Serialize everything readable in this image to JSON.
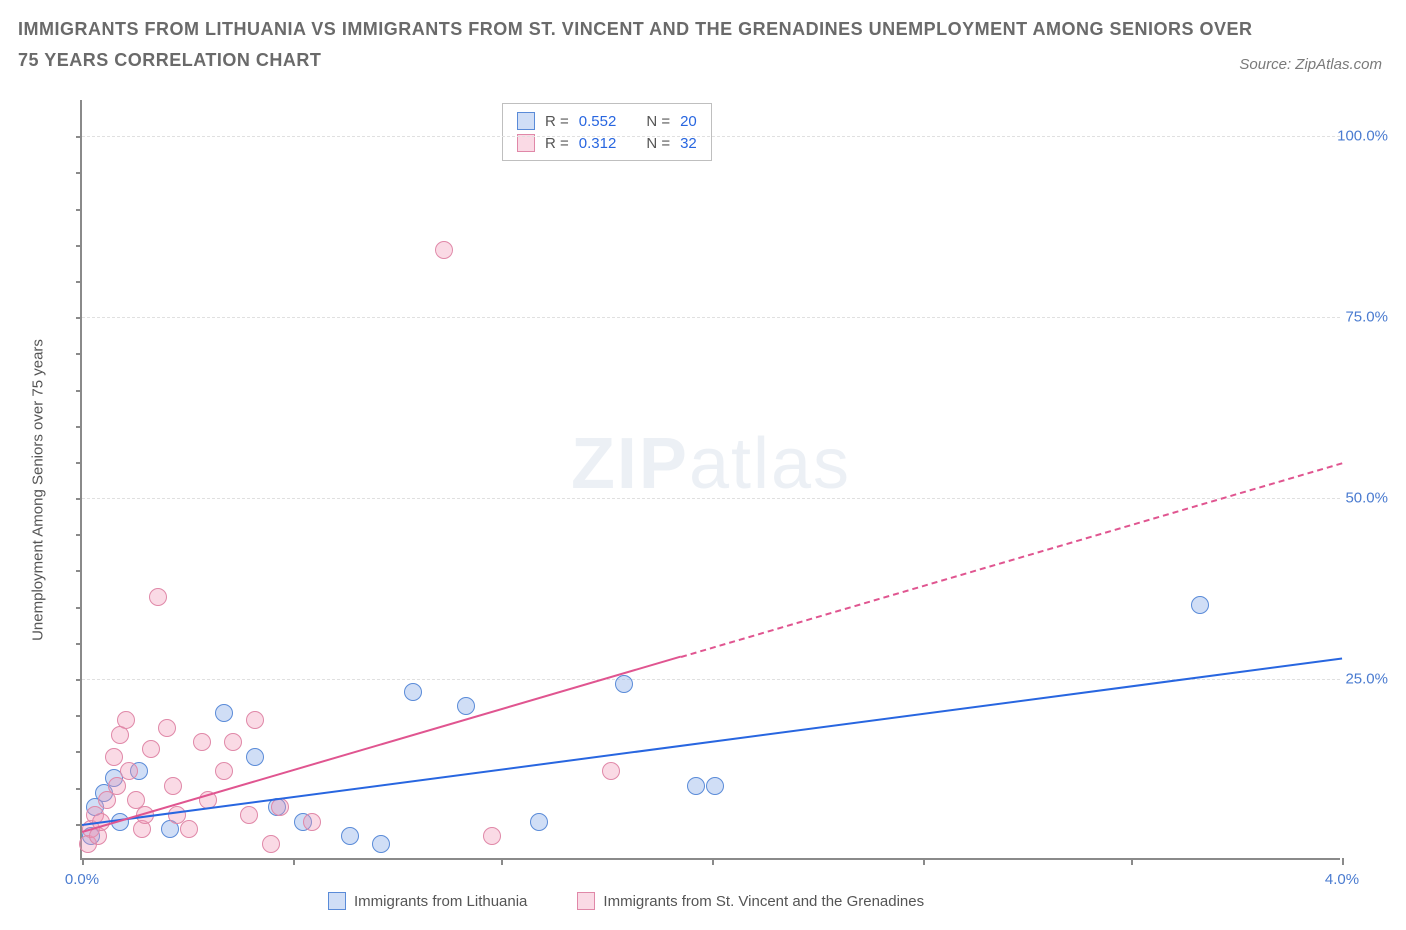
{
  "title": "IMMIGRANTS FROM LITHUANIA VS IMMIGRANTS FROM ST. VINCENT AND THE GRENADINES UNEMPLOYMENT AMONG SENIORS OVER 75 YEARS CORRELATION CHART",
  "source_label": "Source:",
  "source_name": "ZipAtlas.com",
  "y_axis_label": "Unemployment Among Seniors over 75 years",
  "watermark_zip": "ZIP",
  "watermark_atlas": "atlas",
  "chart": {
    "type": "scatter",
    "xlim": [
      0,
      4.0
    ],
    "ylim": [
      0,
      105
    ],
    "x_ticks": [
      0.0,
      4.0
    ],
    "x_tick_labels": [
      "0.0%",
      "4.0%"
    ],
    "x_minor_ticks": [
      0.67,
      1.33,
      2.0,
      2.67,
      3.33
    ],
    "y_ticks": [
      25.0,
      50.0,
      75.0,
      100.0
    ],
    "y_tick_labels": [
      "25.0%",
      "50.0%",
      "75.0%",
      "100.0%"
    ],
    "background_color": "#ffffff",
    "grid_color": "#e0e0e0",
    "axis_color": "#8a8a8a",
    "marker_radius": 9,
    "marker_border_width": 1
  },
  "series": [
    {
      "name": "Immigrants from Lithuania",
      "fill_color": "rgba(120,160,230,0.35)",
      "stroke_color": "#5a8bd8",
      "line_color": "#2866e0",
      "R": "0.552",
      "N": "20",
      "trend": {
        "x1": 0.0,
        "y1": 5.0,
        "x2": 4.0,
        "y2": 28.0,
        "solid_to_x": 4.0
      },
      "points": [
        {
          "x": 0.03,
          "y": 3
        },
        {
          "x": 0.04,
          "y": 7
        },
        {
          "x": 0.07,
          "y": 9
        },
        {
          "x": 0.1,
          "y": 11
        },
        {
          "x": 0.12,
          "y": 5
        },
        {
          "x": 0.18,
          "y": 12
        },
        {
          "x": 0.28,
          "y": 4
        },
        {
          "x": 0.45,
          "y": 20
        },
        {
          "x": 0.55,
          "y": 14
        },
        {
          "x": 0.62,
          "y": 7
        },
        {
          "x": 0.7,
          "y": 5
        },
        {
          "x": 0.85,
          "y": 3
        },
        {
          "x": 0.95,
          "y": 2
        },
        {
          "x": 1.05,
          "y": 23
        },
        {
          "x": 1.22,
          "y": 21
        },
        {
          "x": 1.45,
          "y": 5
        },
        {
          "x": 1.72,
          "y": 24
        },
        {
          "x": 1.95,
          "y": 10
        },
        {
          "x": 2.01,
          "y": 10
        },
        {
          "x": 3.55,
          "y": 35
        }
      ]
    },
    {
      "name": "Immigrants from St. Vincent and the Grenadines",
      "fill_color": "rgba(240,150,180,0.35)",
      "stroke_color": "#e088a8",
      "line_color": "#e05590",
      "R": "0.312",
      "N": "32",
      "trend": {
        "x1": 0.0,
        "y1": 4.0,
        "x2": 4.0,
        "y2": 55.0,
        "solid_to_x": 1.9
      },
      "points": [
        {
          "x": 0.02,
          "y": 2
        },
        {
          "x": 0.03,
          "y": 4
        },
        {
          "x": 0.04,
          "y": 6
        },
        {
          "x": 0.05,
          "y": 3
        },
        {
          "x": 0.06,
          "y": 5
        },
        {
          "x": 0.08,
          "y": 8
        },
        {
          "x": 0.1,
          "y": 14
        },
        {
          "x": 0.11,
          "y": 10
        },
        {
          "x": 0.12,
          "y": 17
        },
        {
          "x": 0.14,
          "y": 19
        },
        {
          "x": 0.15,
          "y": 12
        },
        {
          "x": 0.17,
          "y": 8
        },
        {
          "x": 0.19,
          "y": 4
        },
        {
          "x": 0.2,
          "y": 6
        },
        {
          "x": 0.22,
          "y": 15
        },
        {
          "x": 0.24,
          "y": 36
        },
        {
          "x": 0.27,
          "y": 18
        },
        {
          "x": 0.29,
          "y": 10
        },
        {
          "x": 0.3,
          "y": 6
        },
        {
          "x": 0.34,
          "y": 4
        },
        {
          "x": 0.38,
          "y": 16
        },
        {
          "x": 0.4,
          "y": 8
        },
        {
          "x": 0.45,
          "y": 12
        },
        {
          "x": 0.48,
          "y": 16
        },
        {
          "x": 0.53,
          "y": 6
        },
        {
          "x": 0.55,
          "y": 19
        },
        {
          "x": 0.6,
          "y": 2
        },
        {
          "x": 0.63,
          "y": 7
        },
        {
          "x": 0.73,
          "y": 5
        },
        {
          "x": 1.15,
          "y": 84
        },
        {
          "x": 1.3,
          "y": 3
        },
        {
          "x": 1.68,
          "y": 12
        }
      ]
    }
  ],
  "stats_labels": {
    "R": "R =",
    "N": "N ="
  },
  "colors": {
    "text_muted": "#6a6a6a",
    "tick_label": "#4a7bd0",
    "stat_value": "#2866e0"
  }
}
